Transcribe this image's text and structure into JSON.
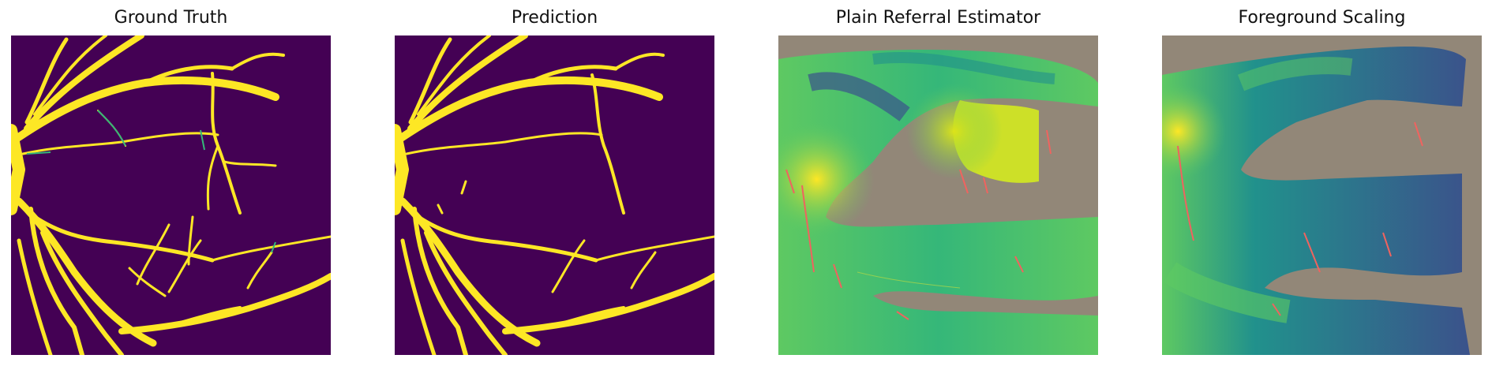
{
  "figure": {
    "panels": [
      {
        "title": "Ground Truth"
      },
      {
        "title": "Prediction"
      },
      {
        "title": "Plain Referral Estimator"
      },
      {
        "title": "Foreground Scaling"
      }
    ]
  },
  "colors": {
    "background_purple": "#440154",
    "vessel_yellow": "#fde725",
    "vessel_teal": "#35b779",
    "referral_gray": "#928778",
    "error_red": "#f0635f",
    "viridis_dark": "#3b528b",
    "viridis_mid": "#21918c",
    "viridis_green": "#5ec962",
    "viridis_yellow": "#dce319"
  }
}
